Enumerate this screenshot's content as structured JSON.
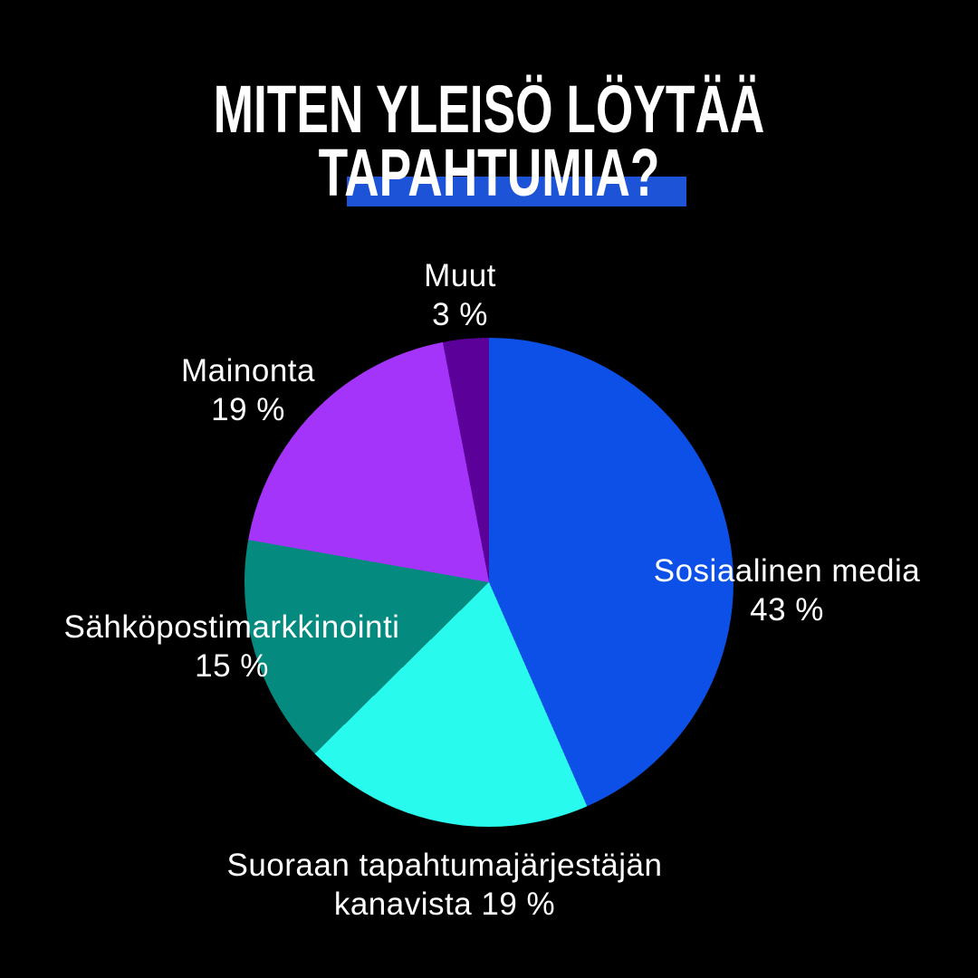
{
  "header": {
    "title_line1": "MITEN YLEISÖ LÖYTÄÄ",
    "title_line2": "TAPAHTUMIA?"
  },
  "colors": {
    "background": "#000000",
    "text": "#FFFFFF",
    "title_highlight_bar": "#1D53D6"
  },
  "chart_data": {
    "type": "pie",
    "title": "MITEN YLEISÖ LÖYTÄÄ TAPAHTUMIA?",
    "start_angle_deg": 0,
    "direction": "clockwise",
    "legend": "none",
    "labels_outside": true,
    "slices": [
      {
        "label": "Sosiaalinen media",
        "value": 43,
        "color": "#0C50E7"
      },
      {
        "label": "Suoraan tapahtumajärjestäjän kanavista",
        "value": 19,
        "color": "#29FAEE"
      },
      {
        "label": "Sähköpostimarkkinointi",
        "value": 15,
        "color": "#058A80"
      },
      {
        "label": "Mainonta",
        "value": 19,
        "color": "#A434FA"
      },
      {
        "label": "Muut",
        "value": 3,
        "color": "#5B0199"
      }
    ]
  },
  "labels": {
    "muut": {
      "line1": "Muut",
      "line2": "3 %"
    },
    "mainonta": {
      "line1": "Mainonta",
      "line2": "19 %"
    },
    "sosiaalinen": {
      "line1": "Sosiaalinen media",
      "line2": "43 %"
    },
    "sahkoposti": {
      "line1": "Sähköpostimarkkinointi",
      "line2": "15 %"
    },
    "suoraan": {
      "line1": "Suoraan tapahtumajärjestäjän",
      "line2": "kanavista 19 %"
    }
  }
}
